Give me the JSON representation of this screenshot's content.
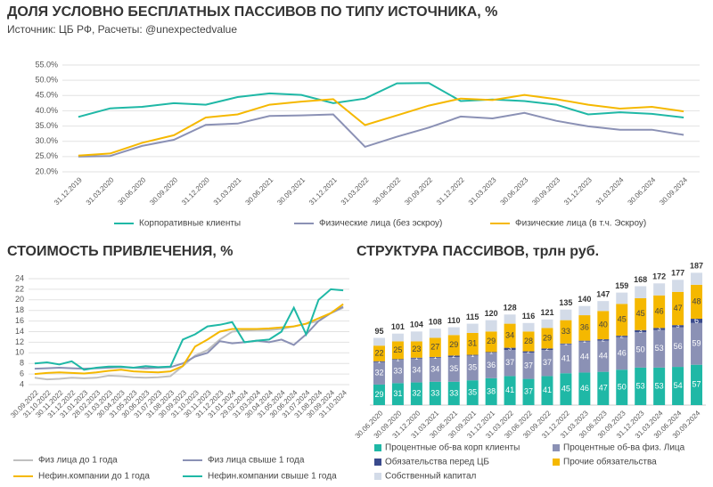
{
  "chart_data": [
    {
      "type": "line",
      "title": "ДОЛЯ УСЛОВНО БЕСПЛАТНЫХ ПАССИВОВ ПО ТИПУ ИСТОЧНИКА, %",
      "subtitle": "Источник: ЦБ РФ, Расчеты: @unexpectedvalue",
      "categories": [
        "31.12.2019",
        "31.03.2020",
        "30.06.2020",
        "30.09.2020",
        "31.12.2020",
        "31.03.2021",
        "30.06.2021",
        "30.09.2021",
        "31.12.2021",
        "31.03.2022",
        "30.06.2022",
        "30.09.2022",
        "31.12.2022",
        "31.03.2023",
        "30.06.2023",
        "30.09.2023",
        "31.12.2023",
        "31.03.2024",
        "30.06.2024",
        "30.09.2024"
      ],
      "series": [
        {
          "name": "Корпоративные клиенты",
          "color": "#1fb8a6",
          "values": [
            38,
            40.8,
            41.3,
            42.5,
            42,
            44.5,
            45.7,
            45.2,
            42.5,
            44,
            49,
            49.1,
            43.2,
            43.7,
            43.2,
            42,
            38.8,
            39.5,
            39,
            37.8
          ]
        },
        {
          "name": "Физические лица (без эскроу)",
          "color": "#8b91b5",
          "values": [
            25,
            25.2,
            28.5,
            30.5,
            35.4,
            35.8,
            38.3,
            38.5,
            38.8,
            28.2,
            31.5,
            34.5,
            38.1,
            37.5,
            39.3,
            36.7,
            34.9,
            33.8,
            33.8,
            32.1
          ]
        },
        {
          "name": "Физические лица (в т.ч. Эскроу)",
          "color": "#f5b800",
          "values": [
            25.3,
            26,
            29.5,
            32,
            37.8,
            38.8,
            42,
            43,
            43.8,
            35.3,
            38.5,
            41.7,
            44,
            43.5,
            45.2,
            43.8,
            42,
            40.7,
            41.3,
            39.8
          ]
        }
      ],
      "ylim": [
        20,
        55
      ],
      "yticks": [
        {
          "value": 20,
          "label": "20.0%"
        },
        {
          "value": 25,
          "label": "25.0%"
        },
        {
          "value": 30,
          "label": "30.0%"
        },
        {
          "value": 35,
          "label": "35.0%"
        },
        {
          "value": 40,
          "label": "40.0%"
        },
        {
          "value": 45,
          "label": "45.0%"
        },
        {
          "value": 50,
          "label": "50.0%"
        },
        {
          "value": 55,
          "label": "55.0%"
        }
      ],
      "grid": true
    },
    {
      "type": "line",
      "title": "СТОИМОСТЬ ПРИВЛЕЧЕНИЯ, %",
      "categories": [
        "30.09.2022",
        "31.10.2022",
        "30.11.2022",
        "31.12.2022",
        "31.01.2023",
        "28.02.2023",
        "31.03.2023",
        "30.04.2023",
        "31.05.2023",
        "30.06.2023",
        "31.07.2023",
        "31.08.2023",
        "30.09.2023",
        "31.10.2023",
        "30.11.2023",
        "31.12.2023",
        "31.01.2024",
        "29.02.2024",
        "31.03.2024",
        "30.04.2024",
        "31.05.2024",
        "30.06.2024",
        "31.07.2024",
        "31.08.2024",
        "30.09.2024",
        "31.10.2024"
      ],
      "series": [
        {
          "name": "Физ лица до 1 года",
          "color": "#c0c0c0",
          "values": [
            5.3,
            5.0,
            5.1,
            5.3,
            5.2,
            5.3,
            5.7,
            5.6,
            5.4,
            5.3,
            5.4,
            5.6,
            7.5,
            9.5,
            10.5,
            12.5,
            14.0,
            14.2,
            14.3,
            14.3,
            14.5,
            15.0,
            15.5,
            16.0,
            17.5,
            18.5
          ]
        },
        {
          "name": "Физ лица свыше 1 года",
          "color": "#8b91b5",
          "values": [
            7.0,
            7.1,
            7.2,
            7.1,
            7.0,
            7.1,
            7.2,
            7.3,
            7.2,
            7.1,
            7.2,
            7.3,
            8.0,
            9.3,
            10.0,
            12.2,
            11.8,
            12.0,
            12.3,
            12.0,
            12.5,
            11.5,
            13.5,
            16.0,
            17.5,
            18.7
          ]
        },
        {
          "name": "Нефин.компании до 1 года",
          "color": "#f5b800",
          "values": [
            6.0,
            6.2,
            6.3,
            6.2,
            6.1,
            6.3,
            6.6,
            6.8,
            6.5,
            6.4,
            6.3,
            6.5,
            7.5,
            11.2,
            12.5,
            14.0,
            14.5,
            14.5,
            14.5,
            14.6,
            14.8,
            15.0,
            15.5,
            16.5,
            17.5,
            19.2
          ]
        },
        {
          "name": "Нефин.компании свыше 1 года",
          "color": "#1fb8a6",
          "values": [
            8.0,
            8.2,
            7.8,
            8.4,
            6.8,
            7.2,
            7.4,
            7.4,
            7.2,
            7.5,
            7.3,
            7.4,
            12.5,
            13.5,
            15.0,
            15.3,
            15.8,
            12.0,
            12.3,
            12.5,
            14.0,
            18.5,
            13.5,
            20.0,
            22.0,
            21.8
          ]
        }
      ],
      "ylim": [
        4,
        24
      ],
      "yticks": [
        4,
        6,
        8,
        10,
        12,
        14,
        16,
        18,
        20,
        22,
        24
      ],
      "grid": true
    },
    {
      "type": "stacked_bar",
      "title": "СТРУКТУРА ПАССИВОВ, трлн руб.",
      "categories": [
        "30.06.2020",
        "30.09.2020",
        "31.12.2020",
        "31.03.2021",
        "30.06.2021",
        "30.09.2021",
        "31.12.2021",
        "31.03.2022",
        "30.06.2022",
        "30.09.2022",
        "31.12.2022",
        "31.03.2023",
        "30.06.2023",
        "30.09.2023",
        "31.12.2023",
        "31.03.2024",
        "30.06.2024",
        "30.09.2024"
      ],
      "series": [
        {
          "name": "Процентные об-ва корп клиенты",
          "color": "#1fb8a6",
          "values": [
            29,
            31,
            32,
            33,
            33,
            35,
            38,
            41,
            37,
            41,
            45,
            46,
            47,
            50,
            53,
            53,
            54,
            57
          ]
        },
        {
          "name": "Процентные об-ва физ. Лица",
          "color": "#8b91b5",
          "values": [
            32,
            33,
            34,
            34,
            35,
            35,
            36,
            37,
            37,
            37,
            41,
            44,
            44,
            46,
            50,
            53,
            56,
            59
          ]
        },
        {
          "name": "Обязательства перед ЦБ",
          "color": "#3a4a8c",
          "values": [
            1,
            1,
            1,
            1,
            2,
            1,
            1,
            3,
            2,
            2,
            1,
            1,
            2,
            2,
            3,
            3,
            3,
            6
          ]
        },
        {
          "name": "Прочие обязательства",
          "color": "#f5b800",
          "values": [
            22,
            25,
            23,
            27,
            29,
            31,
            29,
            34,
            28,
            29,
            33,
            36,
            40,
            45,
            45,
            46,
            47,
            48
          ]
        },
        {
          "name": "Собственный капитал",
          "color": "#d3dbe8",
          "values": [
            11,
            11,
            14,
            13,
            11,
            13,
            16,
            13,
            12,
            12,
            15,
            13,
            14,
            16,
            17,
            17,
            17,
            17
          ]
        }
      ],
      "totals": [
        95,
        101,
        104,
        108,
        110,
        115,
        120,
        128,
        116,
        121,
        135,
        140,
        147,
        159,
        168,
        172,
        177,
        187
      ],
      "ylim": [
        0,
        195
      ]
    }
  ]
}
